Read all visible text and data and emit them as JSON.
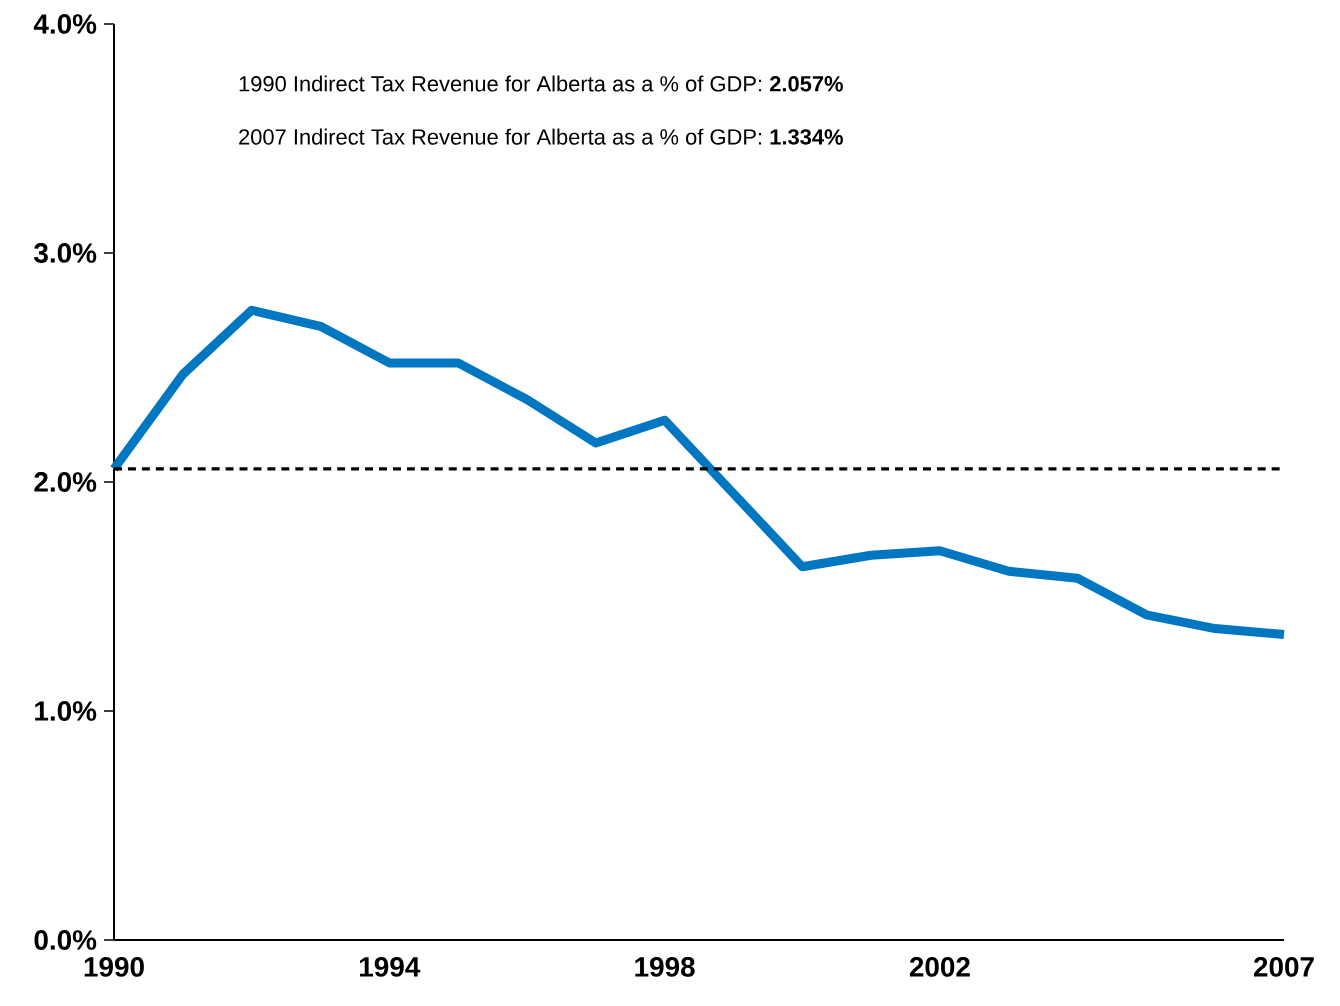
{
  "chart_data": {
    "type": "line",
    "x": [
      1990,
      1991,
      1992,
      1993,
      1994,
      1995,
      1996,
      1997,
      1998,
      1999,
      2000,
      2001,
      2002,
      2003,
      2004,
      2005,
      2006,
      2007
    ],
    "series": [
      {
        "color": "#0077c0",
        "values": [
          2.057,
          2.47,
          2.75,
          2.68,
          2.52,
          2.52,
          2.36,
          2.17,
          2.27,
          1.95,
          1.63,
          1.68,
          1.7,
          1.61,
          1.58,
          1.42,
          1.36,
          1.334
        ]
      }
    ],
    "xlim": [
      1990,
      2007
    ],
    "xticks": [
      1990,
      1994,
      1998,
      2002,
      2007
    ],
    "ylim": [
      0,
      4
    ],
    "yticks": [
      {
        "value": 0,
        "label": "0.0%"
      },
      {
        "value": 1,
        "label": "1.0%"
      },
      {
        "value": 2,
        "label": "2.0%"
      },
      {
        "value": 3,
        "label": "3.0%"
      },
      {
        "value": 4,
        "label": "4.0%"
      }
    ],
    "ref_lines": [
      {
        "axis": "y",
        "value": 2.057,
        "color": "#000000",
        "line_style": "dashed"
      }
    ],
    "annotations": [
      "1990 Indirect Tax Revenue for Alberta as a % of GDP:  **2.057%**",
      "2007 Indirect Tax Revenue for Alberta as a % of GDP:  **1.334%**"
    ],
    "grid": false,
    "marker": "none",
    "line_style": "solid"
  }
}
